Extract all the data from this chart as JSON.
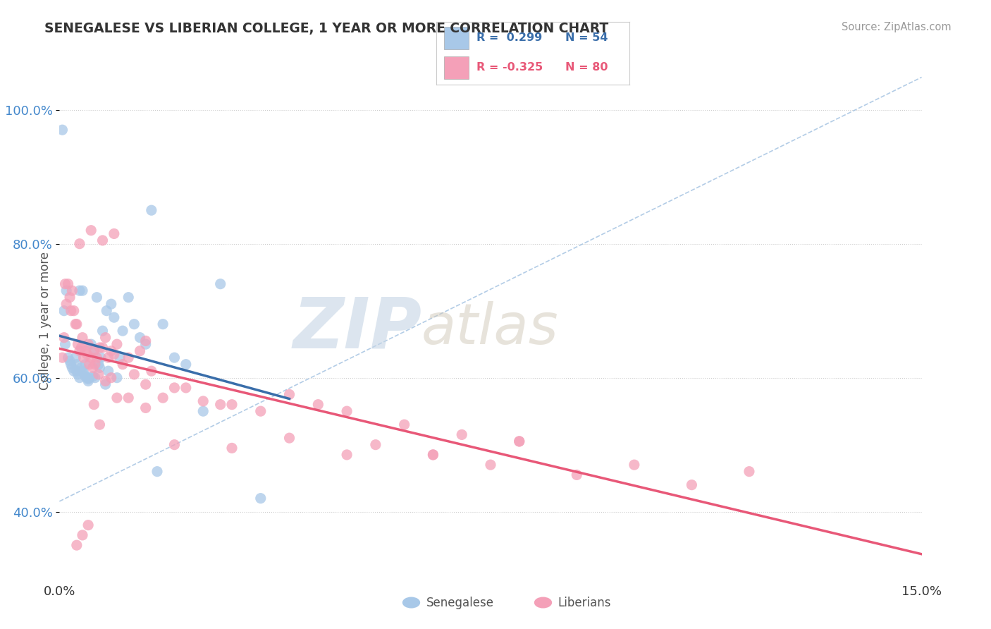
{
  "title": "SENEGALESE VS LIBERIAN COLLEGE, 1 YEAR OR MORE CORRELATION CHART",
  "source": "Source: ZipAtlas.com",
  "ylabel": "College, 1 year or more",
  "xmin": 0.0,
  "xmax": 15.0,
  "ymin": 30.0,
  "ymax": 107.0,
  "yticks": [
    40.0,
    60.0,
    80.0,
    100.0
  ],
  "ytick_labels": [
    "40.0%",
    "60.0%",
    "80.0%",
    "100.0%"
  ],
  "xtick_labels": [
    "0.0%",
    "15.0%"
  ],
  "senegalese_R": 0.299,
  "senegalese_N": 54,
  "liberian_R": -0.325,
  "liberian_N": 80,
  "senegalese_color": "#a8c8e8",
  "liberian_color": "#f4a0b8",
  "senegalese_line_color": "#3a6eaa",
  "liberian_line_color": "#e85878",
  "ref_line_color": "#a0c0e0",
  "background_color": "#ffffff",
  "watermark_zip": "ZIP",
  "watermark_atlas": "atlas",
  "watermark_color": "#c8d8e8",
  "senegalese_x": [
    0.05,
    0.08,
    0.1,
    0.12,
    0.15,
    0.18,
    0.2,
    0.22,
    0.25,
    0.28,
    0.3,
    0.3,
    0.32,
    0.35,
    0.35,
    0.38,
    0.4,
    0.4,
    0.42,
    0.45,
    0.45,
    0.48,
    0.5,
    0.5,
    0.52,
    0.55,
    0.58,
    0.6,
    0.62,
    0.65,
    0.68,
    0.7,
    0.72,
    0.75,
    0.8,
    0.82,
    0.85,
    0.9,
    0.95,
    1.0,
    1.05,
    1.1,
    1.2,
    1.3,
    1.4,
    1.5,
    1.6,
    1.8,
    2.0,
    2.2,
    2.5,
    2.8,
    3.5,
    1.7
  ],
  "senegalese_y": [
    97.0,
    70.0,
    65.0,
    73.0,
    63.0,
    62.5,
    62.0,
    61.5,
    61.0,
    63.0,
    62.0,
    61.0,
    60.5,
    73.0,
    60.0,
    61.5,
    73.0,
    61.0,
    60.8,
    62.0,
    60.2,
    60.0,
    59.8,
    59.5,
    60.0,
    65.0,
    60.2,
    64.0,
    60.0,
    72.0,
    62.0,
    61.5,
    63.0,
    67.0,
    59.0,
    70.0,
    61.0,
    71.0,
    69.0,
    60.0,
    63.0,
    67.0,
    72.0,
    68.0,
    66.0,
    65.0,
    85.0,
    68.0,
    63.0,
    62.0,
    55.0,
    74.0,
    42.0,
    46.0
  ],
  "liberian_x": [
    0.05,
    0.08,
    0.1,
    0.12,
    0.15,
    0.18,
    0.2,
    0.22,
    0.25,
    0.28,
    0.3,
    0.32,
    0.35,
    0.38,
    0.4,
    0.42,
    0.45,
    0.48,
    0.5,
    0.52,
    0.55,
    0.58,
    0.6,
    0.62,
    0.65,
    0.68,
    0.7,
    0.75,
    0.8,
    0.85,
    0.9,
    0.95,
    1.0,
    1.1,
    1.2,
    1.3,
    1.4,
    1.5,
    1.6,
    1.8,
    2.0,
    2.2,
    2.5,
    2.8,
    3.0,
    3.5,
    4.0,
    4.5,
    5.0,
    5.5,
    6.0,
    6.5,
    7.0,
    7.5,
    8.0,
    9.0,
    10.0,
    11.0,
    12.0,
    0.3,
    0.4,
    0.5,
    0.6,
    0.7,
    0.8,
    0.9,
    1.0,
    1.2,
    1.5,
    2.0,
    3.0,
    4.0,
    5.0,
    6.5,
    8.0,
    0.35,
    0.55,
    0.75,
    0.95,
    1.5
  ],
  "liberian_y": [
    63.0,
    66.0,
    74.0,
    71.0,
    74.0,
    72.0,
    70.0,
    73.0,
    70.0,
    68.0,
    68.0,
    65.0,
    64.0,
    64.5,
    66.0,
    63.0,
    64.0,
    63.5,
    65.0,
    62.0,
    63.0,
    61.5,
    64.0,
    62.0,
    63.0,
    60.5,
    64.5,
    64.5,
    66.0,
    63.0,
    64.0,
    63.5,
    65.0,
    62.0,
    63.0,
    60.5,
    64.0,
    65.5,
    61.0,
    57.0,
    58.5,
    58.5,
    56.5,
    56.0,
    56.0,
    55.0,
    57.5,
    56.0,
    55.0,
    50.0,
    53.0,
    48.5,
    51.5,
    47.0,
    50.5,
    45.5,
    47.0,
    44.0,
    46.0,
    35.0,
    36.5,
    38.0,
    56.0,
    53.0,
    59.5,
    60.0,
    57.0,
    57.0,
    55.5,
    50.0,
    49.5,
    51.0,
    48.5,
    48.5,
    50.5,
    80.0,
    82.0,
    80.5,
    81.5,
    59.0
  ]
}
